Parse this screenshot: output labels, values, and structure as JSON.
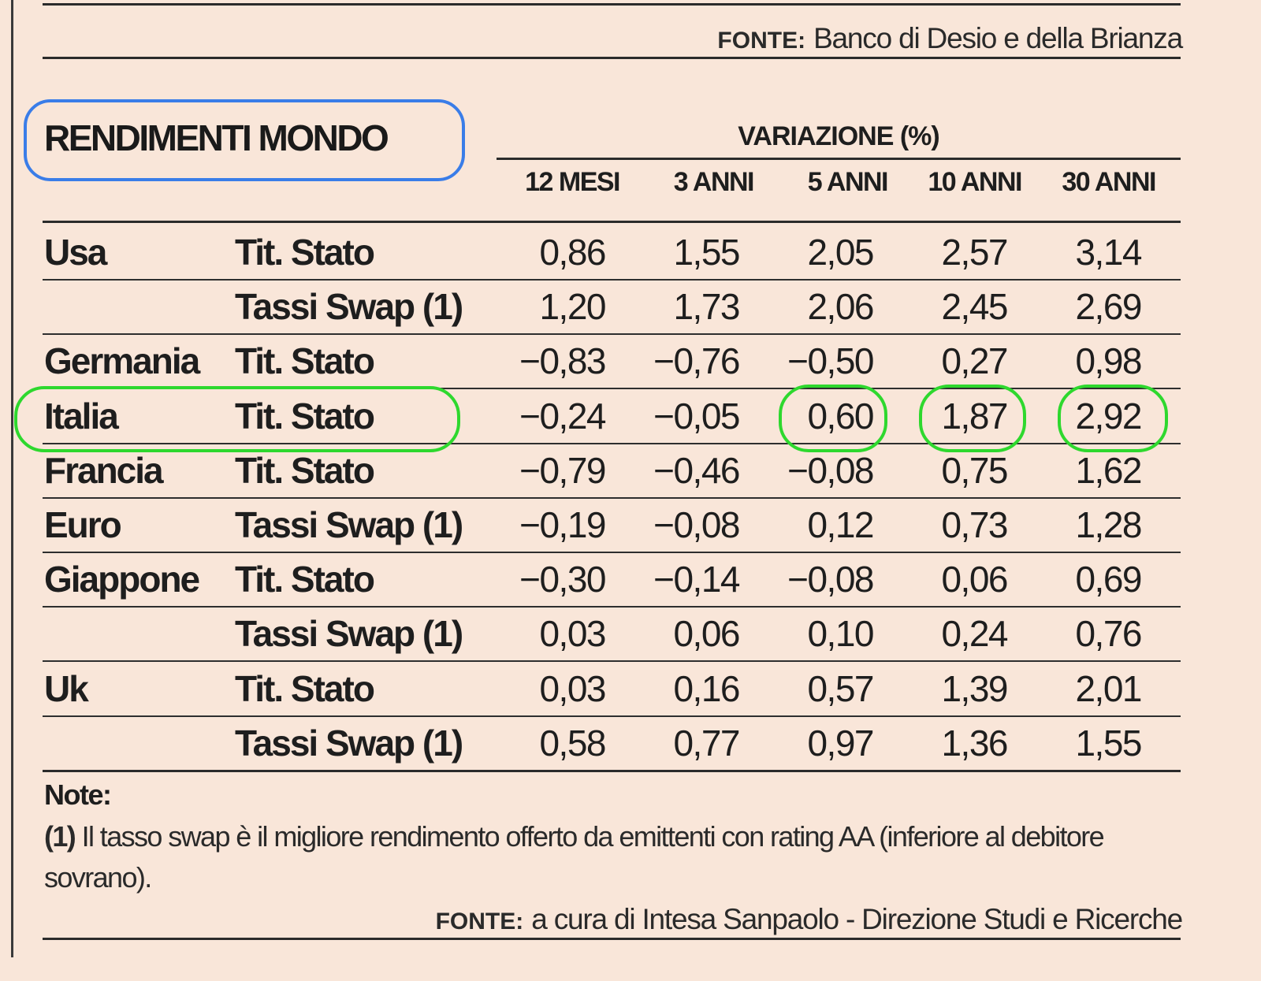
{
  "top_source": {
    "label": "FONTE:",
    "text": "Banco di Desio e della Brianza"
  },
  "title": "RENDIMENTI MONDO",
  "variation_header": "VARIAZIONE (%)",
  "columns": [
    "12 MESI",
    "3 ANNI",
    "5 ANNI",
    "10 ANNI",
    "30 ANNI"
  ],
  "rows": [
    {
      "country": "Usa",
      "instrument": "Tit. Stato",
      "values": [
        "0,86",
        "1,55",
        "2,05",
        "2,57",
        "3,14"
      ]
    },
    {
      "country": "",
      "instrument": "Tassi Swap (1)",
      "values": [
        "1,20",
        "1,73",
        "2,06",
        "2,45",
        "2,69"
      ]
    },
    {
      "country": "Germania",
      "instrument": "Tit. Stato",
      "values": [
        "−0,83",
        "−0,76",
        "−0,50",
        "0,27",
        "0,98"
      ]
    },
    {
      "country": "Italia",
      "instrument": "Tit. Stato",
      "values": [
        "−0,24",
        "−0,05",
        "0,60",
        "1,87",
        "2,92"
      ]
    },
    {
      "country": "Francia",
      "instrument": "Tit. Stato",
      "values": [
        "−0,79",
        "−0,46",
        "−0,08",
        "0,75",
        "1,62"
      ]
    },
    {
      "country": "Euro",
      "instrument": "Tassi Swap (1)",
      "values": [
        "−0,19",
        "−0,08",
        "0,12",
        "0,73",
        "1,28"
      ]
    },
    {
      "country": "Giappone",
      "instrument": "Tit. Stato",
      "values": [
        "−0,30",
        "−0,14",
        "−0,08",
        "0,06",
        "0,69"
      ]
    },
    {
      "country": "",
      "instrument": "Tassi Swap (1)",
      "values": [
        "0,03",
        "0,06",
        "0,10",
        "0,24",
        "0,76"
      ]
    },
    {
      "country": "Uk",
      "instrument": "Tit. Stato",
      "values": [
        "0,03",
        "0,16",
        "0,57",
        "1,39",
        "2,01"
      ]
    },
    {
      "country": "",
      "instrument": "Tassi Swap (1)",
      "values": [
        "0,58",
        "0,77",
        "0,97",
        "1,36",
        "1,55"
      ]
    }
  ],
  "notes": {
    "title": "Note:",
    "ref": "(1)",
    "text": "Il tasso swap è il migliore rendimento offerto da emittenti con rating AA (inferiore al debitore sovrano)."
  },
  "bottom_source": {
    "label": "FONTE:",
    "text": "a cura di Intesa Sanpaolo - Direzione Studi e Ricerche"
  },
  "highlights": {
    "title_color": "#3a7de8",
    "row_color": "#2ed82e"
  }
}
